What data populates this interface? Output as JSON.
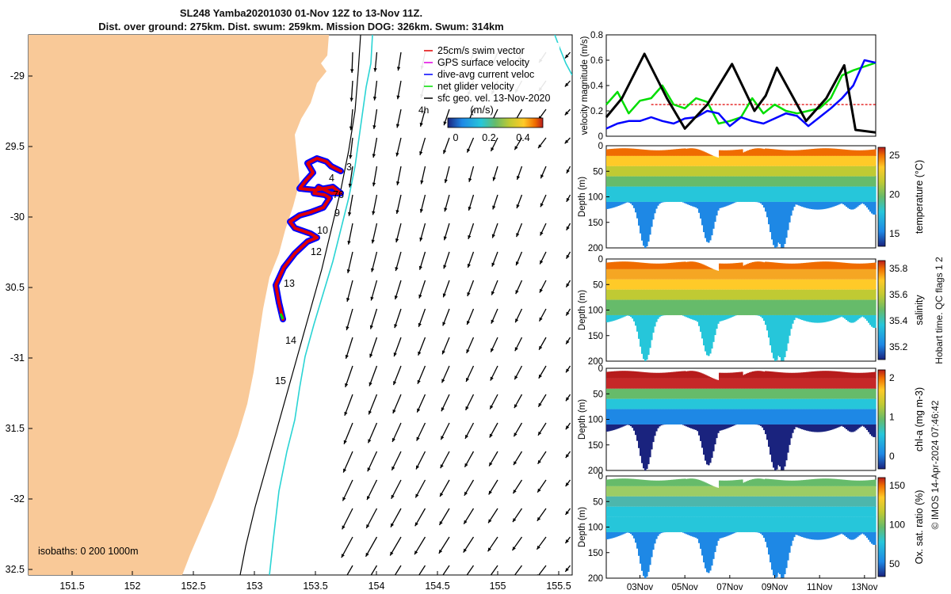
{
  "header": {
    "title_line1": "SL248 Yamba20201030 01-Nov 12Z to 13-Nov 11Z.",
    "title_line2": "Dist. over ground: 275km. Dist. swum: 259km. Mission DOG: 326km. Swum: 314km"
  },
  "map": {
    "lon_ticks": [
      "151.5",
      "152",
      "152.5",
      "153",
      "153.5",
      "154",
      "154.5",
      "155",
      "155.5"
    ],
    "lat_ticks": [
      "-29",
      "29.5",
      "-30",
      "30.5",
      "-31",
      "31.5",
      "-32",
      "32.5"
    ],
    "legend": [
      {
        "label": "25cm/s swim vector",
        "color": "#e00000"
      },
      {
        "label": "GPS surface velocity",
        "color": "#e000e0"
      },
      {
        "label": "dive-avg current veloc",
        "color": "#0000ff"
      },
      {
        "label": "net glider velocity",
        "color": "#00dd00"
      },
      {
        "label": "sfc geo. vel. 13-Nov-2020",
        "color": "#000000"
      }
    ],
    "colorbar_label": "(m/s)",
    "colorbar_ticks": [
      "0",
      "0.2",
      "0.4"
    ],
    "hour_label": "4h",
    "day_labels": [
      "3",
      "4",
      "76",
      "9",
      "10",
      "12",
      "13",
      "14",
      "15"
    ],
    "isobaths_label": "isobaths: 0   200  1000m",
    "colors": {
      "land": "#f9c998",
      "ocean": "#ffffff",
      "glider_red": "#e00000",
      "glider_blue": "#0000ff"
    }
  },
  "chart_data": [
    {
      "type": "line",
      "ylabel": "velocity magnitude (m/s)",
      "ylim": [
        0,
        0.8
      ],
      "yticks": [
        "0",
        "0.2",
        "0.4",
        "0.6",
        "0.8"
      ],
      "x_range_days": [
        1.5,
        13.5
      ],
      "series": [
        {
          "color": "#000000",
          "x": [
            1.5,
            2.2,
            3.2,
            4.2,
            5.0,
            6.0,
            7.1,
            8.1,
            8.6,
            9.1,
            10.4,
            11.3,
            12.1,
            12.6,
            13.5
          ],
          "values": [
            0.15,
            0.3,
            0.65,
            0.3,
            0.06,
            0.25,
            0.57,
            0.2,
            0.32,
            0.54,
            0.12,
            0.3,
            0.56,
            0.05,
            0.03
          ]
        },
        {
          "color": "#00dd00",
          "x": [
            1.5,
            2.0,
            2.5,
            3.0,
            3.5,
            4.0,
            4.5,
            5.0,
            5.5,
            6.0,
            6.5,
            7.0,
            7.5,
            8.0,
            8.5,
            9.0,
            9.5,
            10.0,
            10.5,
            11.0,
            11.5,
            12.0,
            12.5,
            13.0,
            13.5
          ],
          "values": [
            0.25,
            0.35,
            0.18,
            0.28,
            0.3,
            0.4,
            0.25,
            0.22,
            0.3,
            0.27,
            0.1,
            0.12,
            0.15,
            0.3,
            0.18,
            0.25,
            0.2,
            0.18,
            0.2,
            0.22,
            0.3,
            0.48,
            0.52,
            0.55,
            0.58
          ]
        },
        {
          "color": "#0000ff",
          "x": [
            1.5,
            2.0,
            2.5,
            3.0,
            3.5,
            4.0,
            4.5,
            5.0,
            5.5,
            6.0,
            6.5,
            7.0,
            7.5,
            8.0,
            8.5,
            9.0,
            9.5,
            10.0,
            10.5,
            11.0,
            11.5,
            12.0,
            12.5,
            13.0,
            13.5
          ],
          "values": [
            0.06,
            0.1,
            0.12,
            0.12,
            0.15,
            0.12,
            0.1,
            0.14,
            0.15,
            0.2,
            0.18,
            0.08,
            0.15,
            0.12,
            0.1,
            0.14,
            0.18,
            0.16,
            0.08,
            0.15,
            0.22,
            0.3,
            0.4,
            0.6,
            0.58
          ]
        },
        {
          "color": "#e00000",
          "x": [
            3.5,
            13.5
          ],
          "values": [
            0.25,
            0.25
          ]
        }
      ]
    },
    {
      "type": "heatmap",
      "ylabel": "Depth (m)",
      "ylim": [
        0,
        200
      ],
      "yticks": [
        "0",
        "50",
        "100",
        "150",
        "200"
      ],
      "colorbar_label": "temperature (°C)",
      "colorbar_ticks": [
        "25",
        "20",
        "15"
      ],
      "colormap": [
        "#1a237e",
        "#1e88e5",
        "#26c6da",
        "#66bb6a",
        "#c0ca33",
        "#ffca28",
        "#ef6c00",
        "#c62828"
      ]
    },
    {
      "type": "heatmap",
      "ylabel": "Depth (m)",
      "ylim": [
        0,
        200
      ],
      "yticks": [
        "0",
        "50",
        "100",
        "150",
        "200"
      ],
      "colorbar_label": "salinity",
      "colorbar_ticks": [
        "35.8",
        "35.6",
        "35.4",
        "35.2"
      ],
      "colormap": [
        "#1a237e",
        "#1e88e5",
        "#26c6da",
        "#66bb6a",
        "#c0ca33",
        "#ffca28",
        "#ef6c00",
        "#c62828"
      ]
    },
    {
      "type": "heatmap",
      "ylabel": "Depth (m)",
      "ylim": [
        0,
        200
      ],
      "yticks": [
        "0",
        "50",
        "100",
        "150",
        "200"
      ],
      "colorbar_label": "chl-a (mg m-3)",
      "colorbar_ticks": [
        "2",
        "1",
        "0"
      ],
      "colormap": [
        "#1a237e",
        "#1e88e5",
        "#26c6da",
        "#66bb6a",
        "#c0ca33",
        "#ffca28",
        "#ef6c00",
        "#c62828"
      ]
    },
    {
      "type": "heatmap",
      "ylabel": "Depth (m)",
      "ylim": [
        0,
        200
      ],
      "yticks": [
        "0",
        "50",
        "100",
        "150",
        "200"
      ],
      "xticks": [
        "03Nov",
        "05Nov",
        "07Nov",
        "09Nov",
        "11Nov",
        "13Nov"
      ],
      "colorbar_label": "Ox. sat. ratio (%)",
      "colorbar_ticks": [
        "150",
        "100",
        "50"
      ],
      "colormap": [
        "#1a237e",
        "#1e88e5",
        "#26c6da",
        "#66bb6a",
        "#c0ca33",
        "#ffca28",
        "#ef6c00",
        "#c62828"
      ]
    }
  ],
  "side_notes": {
    "qc": "Hobart time. QC flags 1  2",
    "credit": "© IMOS 14-Apr-2024 07:46:42"
  }
}
